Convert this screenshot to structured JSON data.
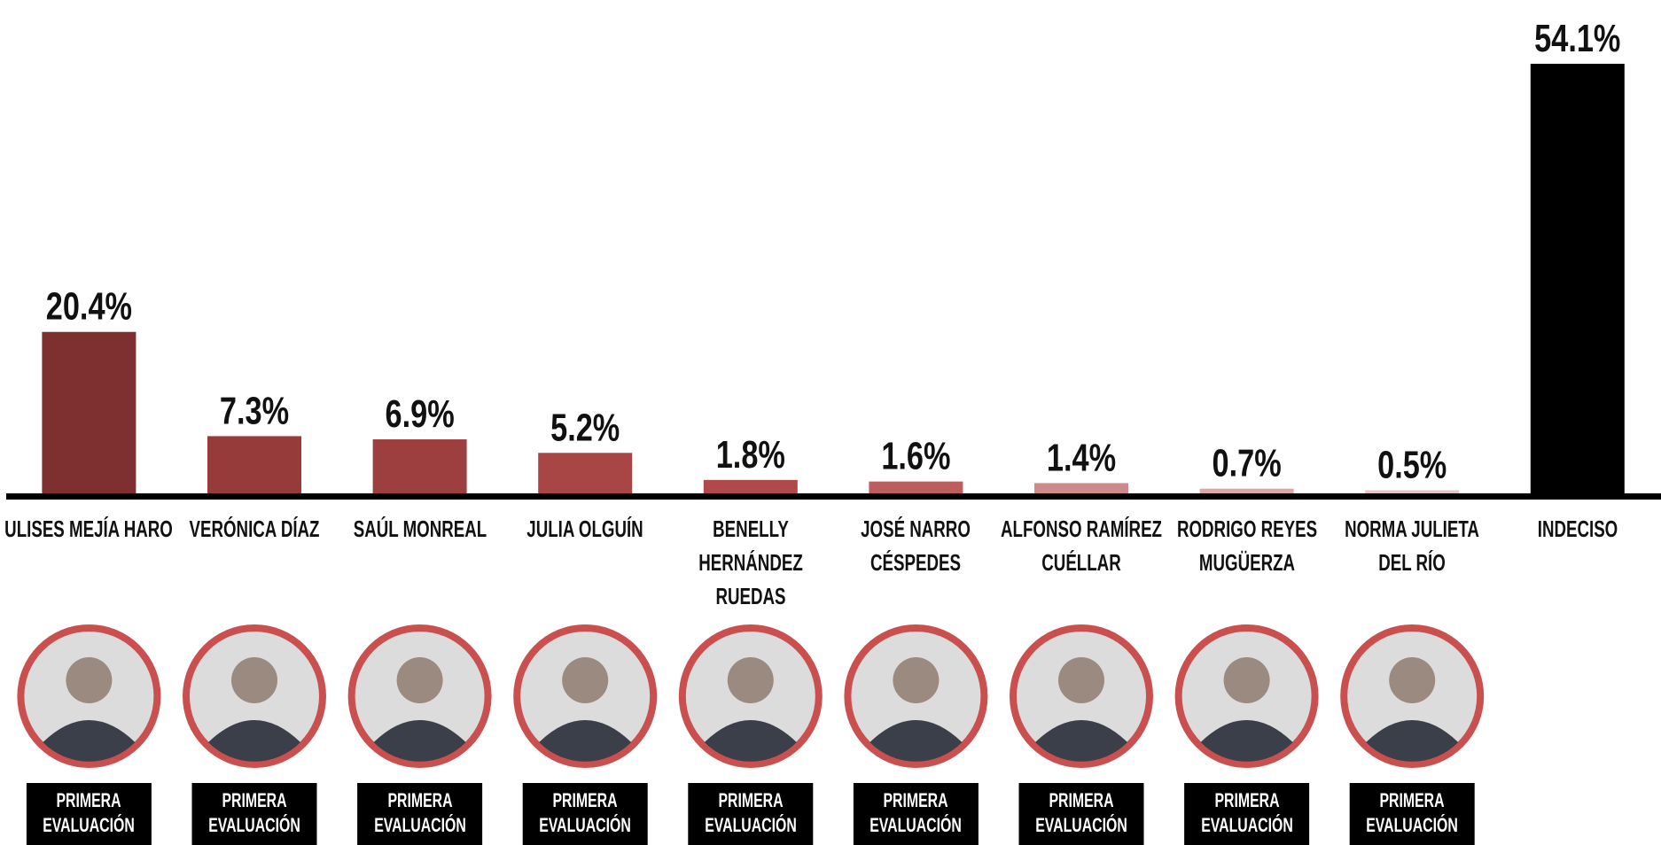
{
  "chart_data": {
    "type": "bar",
    "categories": [
      "ULISES MEJÍA HARO",
      "VERÓNICA DÍAZ",
      "SAÚL MONREAL",
      "JULIA OLGUÍN",
      "BENELLY\nHERNÁNDEZ\nRUEDAS",
      "JOSÉ NARRO\nCÉSPEDES",
      "ALFONSO RAMÍREZ\nCUÉLLAR",
      "RODRIGO REYES\nMUGÜERZA",
      "NORMA JULIETA\nDEL RÍO",
      "INDECISO"
    ],
    "values": [
      20.4,
      7.3,
      6.9,
      5.2,
      1.8,
      1.6,
      1.4,
      0.7,
      0.5,
      54.1
    ],
    "value_labels": [
      "20.4%",
      "7.3%",
      "6.9%",
      "5.2%",
      "1.8%",
      "1.6%",
      "1.4%",
      "0.7%",
      "0.5%",
      "54.1%"
    ],
    "colors": [
      "#7e2f2f",
      "#963a3a",
      "#9e3f3f",
      "#a84545",
      "#b04a4a",
      "#bd5e5e",
      "#cc8a8a",
      "#d9a9a9",
      "#e2c4c4",
      "#000000"
    ],
    "badges": [
      "PRIMERA\nEVALUACIÓN",
      "PRIMERA\nEVALUACIÓN",
      "PRIMERA\nEVALUACIÓN",
      "PRIMERA\nEVALUACIÓN",
      "PRIMERA\nEVALUACIÓN",
      "PRIMERA\nEVALUACIÓN",
      "PRIMERA\nEVALUACIÓN",
      "PRIMERA\nEVALUACIÓN",
      "PRIMERA\nEVALUACIÓN"
    ]
  }
}
